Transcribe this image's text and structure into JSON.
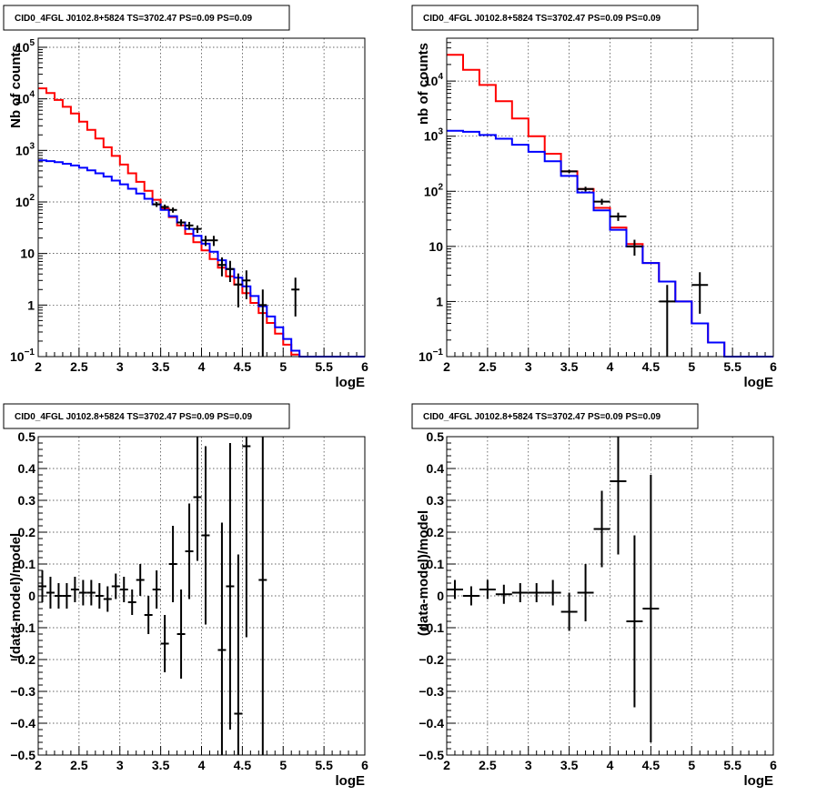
{
  "chart_data": [
    {
      "type": "line",
      "title": "CID0_4FGL J0102.8+5824 TS=3702.47 PS=0.09 PS=0.09",
      "xlabel": "logE",
      "ylabel": "Nb of counts",
      "yscale": "log",
      "xlim": [
        2,
        6
      ],
      "ylim": [
        0.1,
        150000
      ],
      "xticks": [
        2,
        2.5,
        3,
        3.5,
        4,
        4.5,
        5,
        5.5,
        6
      ],
      "yticks": [
        {
          "v": 0.1,
          "label": "10",
          "exp": "−1"
        },
        {
          "v": 1,
          "label": "1",
          "exp": ""
        },
        {
          "v": 10,
          "label": "10",
          "exp": ""
        },
        {
          "v": 100,
          "label": "10",
          "exp": "2"
        },
        {
          "v": 1000,
          "label": "10",
          "exp": "3"
        },
        {
          "v": 10000,
          "label": "10",
          "exp": "4"
        },
        {
          "v": 100000,
          "label": "10",
          "exp": "5"
        }
      ],
      "grid": true,
      "bin_edges": [
        2,
        2.1,
        2.2,
        2.3,
        2.4,
        2.5,
        2.6,
        2.7,
        2.8,
        2.9,
        3,
        3.1,
        3.2,
        3.3,
        3.4,
        3.5,
        3.6,
        3.7,
        3.8,
        3.9,
        4,
        4.1,
        4.2,
        4.3,
        4.4,
        4.5,
        4.6,
        4.7,
        4.8,
        4.9,
        5,
        5.1,
        5.2,
        5.3,
        5.4,
        5.5,
        5.6,
        5.7,
        5.8,
        5.9,
        6
      ],
      "series": [
        {
          "color": "#ff0000",
          "values": [
            16000,
            13000,
            9500,
            7000,
            5200,
            3600,
            2500,
            1700,
            1150,
            780,
            530,
            360,
            245,
            165,
            110,
            75,
            51,
            35,
            24,
            16.5,
            11.5,
            7.8,
            5.3,
            3.6,
            2.5,
            1.7,
            1.1,
            0.7,
            0.45,
            0.28,
            0.17,
            0.11,
            0.1,
            0.1,
            0.1,
            0.1,
            0.1,
            0.1,
            0.1,
            0.1
          ]
        },
        {
          "color": "#0000ff",
          "values": [
            640,
            620,
            590,
            550,
            510,
            460,
            410,
            360,
            310,
            260,
            220,
            180,
            145,
            115,
            90,
            70,
            53,
            40,
            30,
            22,
            15.5,
            10.8,
            7.4,
            5,
            3.4,
            2.3,
            1.5,
            0.95,
            0.6,
            0.37,
            0.22,
            0.13,
            0.1,
            0.1,
            0.1,
            0.1,
            0.1,
            0.1,
            0.1,
            0.1
          ]
        }
      ],
      "data_points": [
        {
          "x": 3.45,
          "y": 90,
          "yerr_lo": 10,
          "yerr_hi": 10
        },
        {
          "x": 3.55,
          "y": 80,
          "yerr_lo": 9,
          "yerr_hi": 9
        },
        {
          "x": 3.65,
          "y": 70,
          "yerr_lo": 8,
          "yerr_hi": 8
        },
        {
          "x": 3.75,
          "y": 40,
          "yerr_lo": 6,
          "yerr_hi": 6
        },
        {
          "x": 3.85,
          "y": 35,
          "yerr_lo": 6,
          "yerr_hi": 6
        },
        {
          "x": 3.95,
          "y": 30,
          "yerr_lo": 5,
          "yerr_hi": 5
        },
        {
          "x": 4.05,
          "y": 18,
          "yerr_lo": 4,
          "yerr_hi": 4
        },
        {
          "x": 4.15,
          "y": 18,
          "yerr_lo": 4,
          "yerr_hi": 4
        },
        {
          "x": 4.25,
          "y": 6,
          "yerr_lo": 2.4,
          "yerr_hi": 2.4
        },
        {
          "x": 4.35,
          "y": 5,
          "yerr_lo": 2.2,
          "yerr_hi": 2.2
        },
        {
          "x": 4.45,
          "y": 2.5,
          "yerr_lo": 1.6,
          "yerr_hi": 1.6
        },
        {
          "x": 4.55,
          "y": 3,
          "yerr_lo": 1.7,
          "yerr_hi": 1.7
        },
        {
          "x": 4.75,
          "y": 1,
          "yerr_lo": 1,
          "yerr_hi": 1
        },
        {
          "x": 5.15,
          "y": 2,
          "yerr_lo": 1.4,
          "yerr_hi": 1.4
        }
      ]
    },
    {
      "type": "line",
      "title": "CID0_4FGL J0102.8+5824 TS=3702.47 PS=0.09 PS=0.09",
      "xlabel": "logE",
      "ylabel": "nb of counts",
      "yscale": "log",
      "xlim": [
        2,
        6
      ],
      "ylim": [
        0.1,
        60000
      ],
      "xticks": [
        2,
        2.5,
        3,
        3.5,
        4,
        4.5,
        5,
        5.5,
        6
      ],
      "yticks": [
        {
          "v": 0.1,
          "label": "10",
          "exp": "−1"
        },
        {
          "v": 1,
          "label": "1",
          "exp": ""
        },
        {
          "v": 10,
          "label": "10",
          "exp": ""
        },
        {
          "v": 100,
          "label": "10",
          "exp": "2"
        },
        {
          "v": 1000,
          "label": "10",
          "exp": "3"
        },
        {
          "v": 10000,
          "label": "10",
          "exp": "4"
        }
      ],
      "grid": true,
      "bin_edges": [
        2,
        2.2,
        2.4,
        2.6,
        2.8,
        3,
        3.2,
        3.4,
        3.6,
        3.8,
        4,
        4.2,
        4.4,
        4.6,
        4.8,
        5,
        5.2,
        5.4,
        5.6,
        5.8,
        6
      ],
      "series": [
        {
          "color": "#ff0000",
          "values": [
            30000,
            16000,
            8500,
            4300,
            2100,
            1000,
            480,
            230,
            110,
            50,
            22,
            11,
            5,
            2.3,
            1,
            0.4,
            0.18,
            0.1,
            0.1,
            0.1
          ]
        },
        {
          "color": "#0000ff",
          "values": [
            1250,
            1200,
            1050,
            900,
            700,
            520,
            350,
            190,
            95,
            45,
            20,
            10,
            5,
            2.3,
            1,
            0.4,
            0.18,
            0.1,
            0.1,
            0.1
          ]
        }
      ],
      "data_points": [
        {
          "x": 3.5,
          "y": 230,
          "yerr_lo": 15,
          "yerr_hi": 15
        },
        {
          "x": 3.7,
          "y": 110,
          "yerr_lo": 11,
          "yerr_hi": 11
        },
        {
          "x": 3.9,
          "y": 65,
          "yerr_lo": 8,
          "yerr_hi": 8
        },
        {
          "x": 4.1,
          "y": 35,
          "yerr_lo": 6,
          "yerr_hi": 6
        },
        {
          "x": 4.3,
          "y": 10,
          "yerr_lo": 3.2,
          "yerr_hi": 3.2
        },
        {
          "x": 4.7,
          "y": 1,
          "yerr_lo": 1,
          "yerr_hi": 1
        },
        {
          "x": 5.1,
          "y": 2,
          "yerr_lo": 1.4,
          "yerr_hi": 1.4
        }
      ]
    },
    {
      "type": "scatter",
      "title": "CID0_4FGL J0102.8+5824 TS=3702.47 PS=0.09 PS=0.09",
      "xlabel": "logE",
      "ylabel": "(data-model)/model",
      "yscale": "linear",
      "xlim": [
        2,
        6
      ],
      "ylim": [
        -0.5,
        0.5
      ],
      "xticks": [
        2,
        2.5,
        3,
        3.5,
        4,
        4.5,
        5,
        5.5,
        6
      ],
      "yticks": [
        -0.5,
        -0.4,
        -0.3,
        -0.2,
        -0.1,
        0,
        0.1,
        0.2,
        0.3,
        0.4,
        0.5
      ],
      "grid": true,
      "xerr": 0.05,
      "points": [
        {
          "x": 2.05,
          "y": 0.03,
          "err": 0.05
        },
        {
          "x": 2.15,
          "y": 0.01,
          "err": 0.05
        },
        {
          "x": 2.25,
          "y": 0.0,
          "err": 0.04
        },
        {
          "x": 2.35,
          "y": 0.0,
          "err": 0.04
        },
        {
          "x": 2.45,
          "y": 0.02,
          "err": 0.04
        },
        {
          "x": 2.55,
          "y": 0.01,
          "err": 0.04
        },
        {
          "x": 2.65,
          "y": 0.01,
          "err": 0.04
        },
        {
          "x": 2.75,
          "y": 0.0,
          "err": 0.04
        },
        {
          "x": 2.85,
          "y": -0.01,
          "err": 0.04
        },
        {
          "x": 2.95,
          "y": 0.03,
          "err": 0.04
        },
        {
          "x": 3.05,
          "y": 0.02,
          "err": 0.04
        },
        {
          "x": 3.15,
          "y": -0.02,
          "err": 0.04
        },
        {
          "x": 3.25,
          "y": 0.05,
          "err": 0.05
        },
        {
          "x": 3.35,
          "y": -0.06,
          "err": 0.06
        },
        {
          "x": 3.45,
          "y": 0.02,
          "err": 0.06
        },
        {
          "x": 3.55,
          "y": -0.15,
          "err": 0.09
        },
        {
          "x": 3.65,
          "y": 0.1,
          "err": 0.12
        },
        {
          "x": 3.75,
          "y": -0.12,
          "err": 0.14
        },
        {
          "x": 3.85,
          "y": 0.14,
          "err": 0.15
        },
        {
          "x": 3.95,
          "y": 0.31,
          "err": 0.2
        },
        {
          "x": 4.05,
          "y": 0.19,
          "err": 0.28
        },
        {
          "x": 4.25,
          "y": -0.17,
          "err": 0.4
        },
        {
          "x": 4.35,
          "y": 0.03,
          "err": 0.45
        },
        {
          "x": 4.45,
          "y": -0.37,
          "err": 0.5
        },
        {
          "x": 4.55,
          "y": 0.47,
          "err": 0.6
        },
        {
          "x": 4.75,
          "y": 0.05,
          "err": 1.0
        }
      ]
    },
    {
      "type": "scatter",
      "title": "CID0_4FGL J0102.8+5824 TS=3702.47 PS=0.09 PS=0.09",
      "xlabel": "logE",
      "ylabel": "(data-model)/model",
      "yscale": "linear",
      "xlim": [
        2,
        6
      ],
      "ylim": [
        -0.5,
        0.5
      ],
      "xticks": [
        2,
        2.5,
        3,
        3.5,
        4,
        4.5,
        5,
        5.5,
        6
      ],
      "yticks": [
        -0.5,
        -0.4,
        -0.3,
        -0.2,
        -0.1,
        0,
        0.1,
        0.2,
        0.3,
        0.4,
        0.5
      ],
      "grid": true,
      "xerr": 0.1,
      "points": [
        {
          "x": 2.1,
          "y": 0.02,
          "err": 0.03
        },
        {
          "x": 2.3,
          "y": 0.0,
          "err": 0.03
        },
        {
          "x": 2.5,
          "y": 0.02,
          "err": 0.03
        },
        {
          "x": 2.7,
          "y": 0.005,
          "err": 0.03
        },
        {
          "x": 2.9,
          "y": 0.01,
          "err": 0.03
        },
        {
          "x": 3.1,
          "y": 0.01,
          "err": 0.03
        },
        {
          "x": 3.3,
          "y": 0.01,
          "err": 0.04
        },
        {
          "x": 3.5,
          "y": -0.05,
          "err": 0.06
        },
        {
          "x": 3.7,
          "y": 0.01,
          "err": 0.09
        },
        {
          "x": 3.9,
          "y": 0.21,
          "err": 0.12
        },
        {
          "x": 4.1,
          "y": 0.36,
          "err": 0.23
        },
        {
          "x": 4.3,
          "y": -0.08,
          "err": 0.27
        },
        {
          "x": 4.5,
          "y": -0.04,
          "err": 0.42
        }
      ]
    }
  ]
}
